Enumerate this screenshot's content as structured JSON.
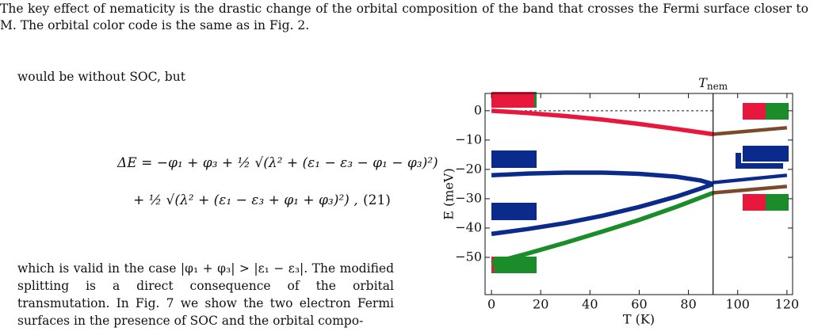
{
  "caption": "The key effect of nematicity is the drastic change of the orbital composition of the band that crosses the Fermi surface closer to M. The orbital color code is the same as in Fig. 2.",
  "lead_in": "would be without SOC, but",
  "equation": {
    "line1": "ΔE = −φ₁ + φ₃ + ½ √(λ² + (ε₁ − ε₃ − φ₁ − φ₃)²)",
    "line2": "+ ½ √(λ² + (ε₁ − ε₃ + φ₁ + φ₃)²) ,",
    "number": "(21)"
  },
  "paragraph": "which is valid in the case |φ₁ + φ₃| > |ε₁ − ε₃|. The modified splitting is a direct consequence of the orbital transmutation. In Fig. 7 we show the two electron Fermi surfaces in the presence of SOC and the orbital compo-",
  "chart_data": {
    "type": "line",
    "xlabel": "T (K)",
    "ylabel": "E (meV)",
    "xlim": [
      -2.6,
      122.3
    ],
    "ylim": [
      -62.7,
      5.9
    ],
    "xticks": [
      0,
      20,
      40,
      60,
      80,
      100,
      120
    ],
    "yticks": [
      {
        "value": 0,
        "label": "0"
      },
      {
        "value": -10,
        "label": "−10"
      },
      {
        "value": -20,
        "label": "−20"
      },
      {
        "value": -30,
        "label": "−30"
      },
      {
        "value": -40,
        "label": "−40"
      },
      {
        "value": -50,
        "label": "−50"
      }
    ],
    "vline": {
      "x": 90,
      "label": "T",
      "label_sub": "nem"
    },
    "hline": {
      "y": 0,
      "xrange": [
        0,
        90
      ]
    },
    "series": [
      {
        "color": "#e8173c",
        "x": [
          0,
          15,
          30,
          45,
          60,
          75,
          90
        ],
        "values": [
          0,
          -0.8,
          -1.8,
          -3,
          -4.5,
          -6.2,
          -8
        ]
      },
      {
        "color": "#0a2a8c",
        "x": [
          0,
          15,
          30,
          45,
          60,
          75,
          85,
          90
        ],
        "values": [
          -22,
          -21.4,
          -21.1,
          -21.1,
          -21.5,
          -22.5,
          -23.8,
          -25
        ]
      },
      {
        "color": "#0a2a8c",
        "x": [
          0,
          15,
          30,
          45,
          60,
          75,
          85,
          90
        ],
        "values": [
          -42,
          -40.3,
          -38.3,
          -35.8,
          -32.8,
          -29.3,
          -26.5,
          -25
        ]
      },
      {
        "color": "#1a8c2a",
        "x": [
          0,
          15,
          30,
          45,
          60,
          75,
          90
        ],
        "values": [
          -52,
          -48.6,
          -45,
          -41.2,
          -37.2,
          -32.8,
          -28
        ]
      },
      {
        "color": "#7a4a2a",
        "x": [
          90,
          120
        ],
        "values": [
          -8,
          -5.8
        ]
      },
      {
        "color": "#0a2a8c",
        "x": [
          90,
          120
        ],
        "values": [
          -24.5,
          -22
        ]
      },
      {
        "color": "#7a4a2a",
        "x": [
          90,
          120
        ],
        "values": [
          -28,
          -25.8
        ]
      }
    ]
  }
}
